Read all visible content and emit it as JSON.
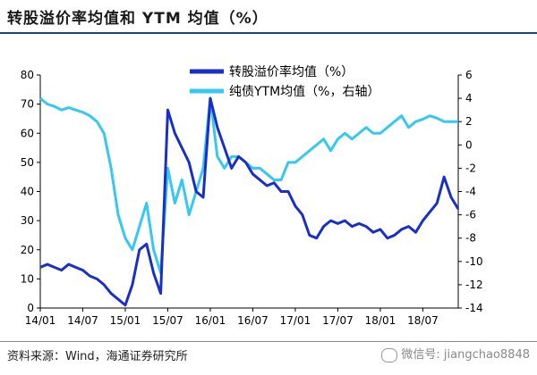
{
  "header": {
    "title": "转股溢价率均值和 YTM 均值（%）"
  },
  "footer": {
    "source": "资料来源：Wind，海通证券研究所",
    "watermark": "微信号: jiangchao8848"
  },
  "colors": {
    "premium": "#1a2fc8",
    "ytm": "#35c8f0",
    "header_rule": "#1f3f8f"
  },
  "chart_data": {
    "type": "line",
    "title": "转股溢价率均值和 YTM 均值（%）",
    "x_ticks": [
      "14/01",
      "14/07",
      "15/01",
      "15/07",
      "16/01",
      "16/07",
      "17/01",
      "17/07",
      "18/01",
      "18/07"
    ],
    "x_range": [
      "2014-01",
      "2018-12"
    ],
    "left_axis": {
      "ylim": [
        0,
        80
      ],
      "ticks": [
        0,
        10,
        20,
        30,
        40,
        50,
        60,
        70,
        80
      ]
    },
    "right_axis": {
      "ylim": [
        -14,
        6
      ],
      "ticks": [
        -14,
        -12,
        -10,
        -8,
        -6,
        -4,
        -2,
        0,
        2,
        4,
        6
      ]
    },
    "legend_position": "top-center",
    "grid": false,
    "series": [
      {
        "name": "转股溢价率均值（%）",
        "axis": "left",
        "x": [
          "2014-01",
          "2014-02",
          "2014-03",
          "2014-04",
          "2014-05",
          "2014-06",
          "2014-07",
          "2014-08",
          "2014-09",
          "2014-10",
          "2014-11",
          "2014-12",
          "2015-01",
          "2015-02",
          "2015-03",
          "2015-04",
          "2015-05",
          "2015-06",
          "2015-07",
          "2015-08",
          "2015-09",
          "2015-10",
          "2015-11",
          "2015-12",
          "2016-01",
          "2016-02",
          "2016-03",
          "2016-04",
          "2016-05",
          "2016-06",
          "2016-07",
          "2016-08",
          "2016-09",
          "2016-10",
          "2016-11",
          "2016-12",
          "2017-01",
          "2017-02",
          "2017-03",
          "2017-04",
          "2017-05",
          "2017-06",
          "2017-07",
          "2017-08",
          "2017-09",
          "2017-10",
          "2017-11",
          "2017-12",
          "2018-01",
          "2018-02",
          "2018-03",
          "2018-04",
          "2018-05",
          "2018-06",
          "2018-07",
          "2018-08",
          "2018-09",
          "2018-10",
          "2018-11",
          "2018-12"
        ],
        "values": [
          14,
          15,
          14,
          13,
          15,
          14,
          13,
          11,
          10,
          8,
          5,
          3,
          1,
          8,
          20,
          22,
          12,
          5,
          68,
          60,
          55,
          50,
          40,
          38,
          72,
          62,
          55,
          48,
          52,
          50,
          46,
          44,
          42,
          43,
          40,
          40,
          35,
          32,
          25,
          24,
          28,
          30,
          29,
          30,
          28,
          29,
          28,
          26,
          27,
          24,
          25,
          27,
          28,
          26,
          30,
          33,
          36,
          45,
          38,
          34
        ]
      },
      {
        "name": "纯债YTM均值（%，右轴）",
        "axis": "right",
        "x": [
          "2014-01",
          "2014-02",
          "2014-03",
          "2014-04",
          "2014-05",
          "2014-06",
          "2014-07",
          "2014-08",
          "2014-09",
          "2014-10",
          "2014-11",
          "2014-12",
          "2015-01",
          "2015-02",
          "2015-03",
          "2015-04",
          "2015-05",
          "2015-06",
          "2015-07",
          "2015-08",
          "2015-09",
          "2015-10",
          "2015-11",
          "2015-12",
          "2016-01",
          "2016-02",
          "2016-03",
          "2016-04",
          "2016-05",
          "2016-06",
          "2016-07",
          "2016-08",
          "2016-09",
          "2016-10",
          "2016-11",
          "2016-12",
          "2017-01",
          "2017-02",
          "2017-03",
          "2017-04",
          "2017-05",
          "2017-06",
          "2017-07",
          "2017-08",
          "2017-09",
          "2017-10",
          "2017-11",
          "2017-12",
          "2018-01",
          "2018-02",
          "2018-03",
          "2018-04",
          "2018-05",
          "2018-06",
          "2018-07",
          "2018-08",
          "2018-09",
          "2018-10",
          "2018-11",
          "2018-12"
        ],
        "values": [
          4,
          3.5,
          3.3,
          3.0,
          3.2,
          3.0,
          2.8,
          2.5,
          2.0,
          1.0,
          -2,
          -6,
          -8,
          -9,
          -7,
          -5,
          -9,
          -11,
          -2,
          -5,
          -3,
          -6,
          -4,
          -2,
          4,
          -1,
          -2,
          -1,
          -1,
          -1.5,
          -2,
          -2,
          -2.5,
          -3,
          -3,
          -1.5,
          -1.5,
          -1,
          -0.5,
          0,
          0.5,
          -0.5,
          0.5,
          1.0,
          0.5,
          1.0,
          1.5,
          1.0,
          1.0,
          1.5,
          2.0,
          2.5,
          1.5,
          2.0,
          2.2,
          2.5,
          2.3,
          2.0,
          2.0,
          2.0
        ]
      }
    ]
  }
}
